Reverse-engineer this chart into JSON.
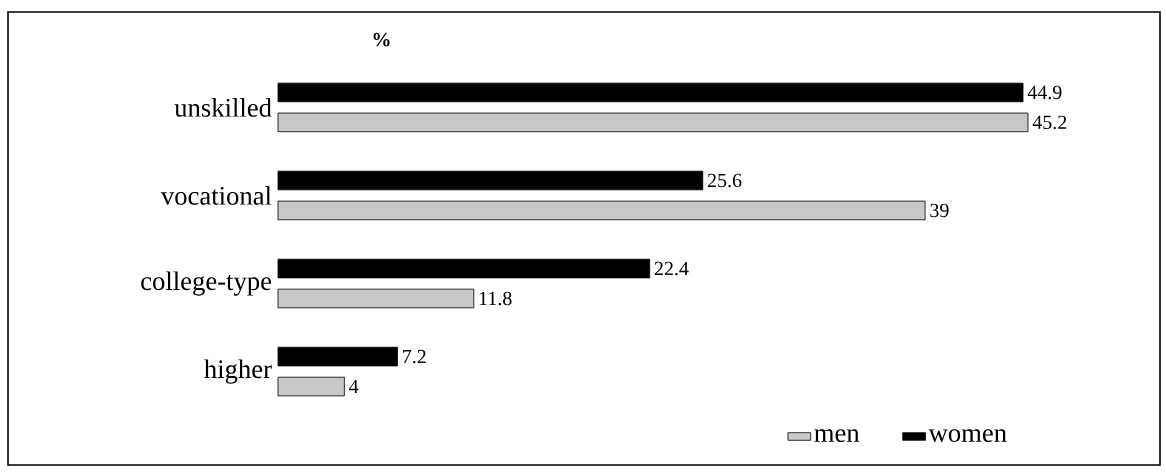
{
  "chart_data": {
    "type": "bar",
    "orientation": "horizontal",
    "title": "%",
    "categories": [
      "unskilled",
      "vocational",
      "college-type",
      "higher"
    ],
    "series": [
      {
        "name": "men",
        "color": "#c8c8c8",
        "values": [
          45.2,
          39,
          11.8,
          4
        ]
      },
      {
        "name": "women",
        "color": "#000000",
        "values": [
          44.9,
          25.6,
          22.4,
          7.2
        ]
      }
    ],
    "data_labels": true,
    "legend": "bottom right"
  }
}
